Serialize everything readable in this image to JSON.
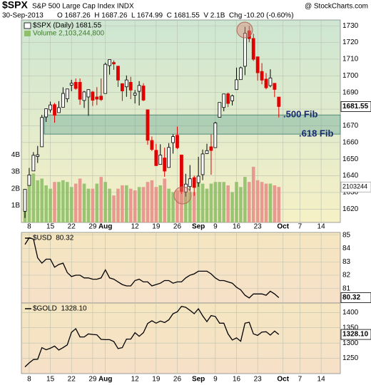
{
  "header": {
    "symbol": "$SPX",
    "name": "S&P 500 Large Cap Index INDX",
    "source": "@ StockCharts.com",
    "date": "30-Sep-2013",
    "quote": "O 1687.26  H 1687.26  L 1674.99  C 1681.55  V 2.1B  Chg -10.20 (-0.60%)"
  },
  "chart_data": [
    {
      "type": "candlestick",
      "legend": "$SPX (Daily) 1681.55",
      "categories": [
        null,
        "8",
        null,
        null,
        null,
        null,
        "15",
        null,
        null,
        null,
        null,
        "22",
        null,
        null,
        null,
        null,
        "29",
        null,
        null,
        "Aug",
        null,
        null,
        null,
        null,
        null,
        null,
        "12",
        null,
        null,
        null,
        null,
        "19",
        null,
        null,
        null,
        null,
        "26",
        null,
        null,
        null,
        null,
        "Sep",
        null,
        null,
        null,
        "9",
        null,
        null,
        null,
        null,
        "16",
        null,
        null,
        null,
        null,
        "23",
        null,
        null,
        null,
        null,
        null,
        "Oct",
        null,
        null,
        null,
        "7",
        null,
        null,
        null,
        null,
        "14",
        null,
        null,
        null,
        null
      ],
      "open": [
        1618.7,
        1634.2,
        1642.9,
        1651.6,
        1657.4,
        1675.3,
        1679.6,
        1682.7,
        1677.9,
        1681.1,
        1686.2,
        1694.4,
        1696.1,
        1696.1,
        1685.2,
        1687.3,
        1690.3,
        1687.3,
        1687.8,
        1689.4,
        1706.1,
        1708.0,
        1705.8,
        1695.3,
        1693.4,
        1696.1,
        1688.4,
        1690.7,
        1693.9,
        1679.6,
        1661.2,
        1655.3,
        1646.8,
        1650.7,
        1645.0,
        1659.9,
        1664.3,
        1652.5,
        1630.3,
        1633.5,
        1638.9,
        1635.9,
        1640.7,
        1653.3,
        1657.4,
        1656.9,
        1675.1,
        1681.0,
        1689.2,
        1685.0,
        1691.7,
        1697.7,
        1705.7,
        1727.0,
        1722.4,
        1711.4,
        1702.6,
        1698.0,
        1694.1,
        1695.5,
        1687.26,
        null,
        null,
        null,
        null,
        null,
        null,
        null,
        null,
        null,
        null,
        null,
        null,
        null,
        null
      ],
      "high": [
        1632.1,
        1644.7,
        1654.2,
        1657.9,
        1676.6,
        1680.2,
        1684.5,
        1683.7,
        1684.8,
        1693.1,
        1692.1,
        1697.6,
        1698.4,
        1698.4,
        1690.9,
        1691.9,
        1690.9,
        1693.2,
        1698.4,
        1707.9,
        1709.7,
        1709.2,
        1705.8,
        1695.3,
        1700.2,
        1699.4,
        1691.5,
        1696.8,
        1695.5,
        1679.6,
        1663.6,
        1659.2,
        1658.9,
        1656.9,
        1659.6,
        1664.9,
        1669.5,
        1652.5,
        1641.2,
        1646.4,
        1640.1,
        1651.4,
        1655.7,
        1659.2,
        1664.8,
        1672.4,
        1684.1,
        1689.1,
        1689.9,
        1688.7,
        1704.9,
        1705.5,
        1729.4,
        1729.9,
        1725.2,
        1711.4,
        1707.6,
        1701.7,
        1703.9,
        1695.5,
        1687.26,
        null,
        null,
        null,
        null,
        null,
        null,
        null,
        null,
        null,
        null,
        null,
        null,
        null,
        null
      ],
      "low": [
        1614.7,
        1634.2,
        1642.9,
        1647.7,
        1657.4,
        1672.3,
        1677.9,
        1671.8,
        1677.9,
        1681.1,
        1684.1,
        1690.7,
        1691.6,
        1682.6,
        1680.7,
        1676.0,
        1681.9,
        1682.4,
        1684.9,
        1689.4,
        1700.7,
        1703.6,
        1693.3,
        1684.9,
        1687.4,
        1686.0,
        1683.4,
        1682.2,
        1684.8,
        1658.6,
        1654.8,
        1645.8,
        1646.8,
        1639.4,
        1645.0,
        1653.3,
        1656.0,
        1629.1,
        1627.5,
        1630.9,
        1628.0,
        1633.4,
        1637.4,
        1653.1,
        1640.6,
        1656.9,
        1675.1,
        1678.7,
        1681.2,
        1682.2,
        1691.7,
        1697.7,
        1700.4,
        1720.2,
        1708.9,
        1697.1,
        1694.9,
        1691.9,
        1693.1,
        1687.2,
        1674.99,
        null,
        null,
        null,
        null,
        null,
        null,
        null,
        null,
        null,
        null,
        null,
        null,
        null,
        null
      ],
      "close": [
        1631.9,
        1640.5,
        1652.3,
        1652.6,
        1675.0,
        1680.2,
        1682.5,
        1676.3,
        1680.9,
        1689.4,
        1692.1,
        1695.5,
        1692.4,
        1685.9,
        1690.3,
        1691.7,
        1685.3,
        1686.0,
        1685.7,
        1706.9,
        1709.7,
        1707.1,
        1697.4,
        1690.9,
        1697.5,
        1691.4,
        1689.5,
        1694.2,
        1685.4,
        1661.3,
        1655.8,
        1646.1,
        1652.4,
        1642.8,
        1657.0,
        1663.5,
        1656.8,
        1630.5,
        1635.0,
        1638.2,
        1633.0,
        1639.8,
        1653.1,
        1655.1,
        1655.2,
        1671.7,
        1684.0,
        1689.1,
        1683.4,
        1688.0,
        1697.6,
        1704.8,
        1725.5,
        1722.3,
        1709.9,
        1701.8,
        1697.4,
        1692.8,
        1698.7,
        1691.8,
        1681.55,
        null,
        null,
        null,
        null,
        null,
        null,
        null,
        null,
        null,
        null,
        null,
        null,
        null,
        null
      ],
      "up_color": "#000000",
      "down_color": "#e00000",
      "ylim": [
        1612,
        1733.5
      ],
      "yticks": [
        1620,
        1630,
        1640,
        1650,
        1660,
        1670,
        1680,
        1690,
        1700,
        1710,
        1720,
        1730
      ],
      "annotations": [
        {
          "text": ".500 Fib",
          "value": 1676.5
        },
        {
          "text": ".618 Fib",
          "value": 1665
        }
      ],
      "volume": {
        "legend": "Volume 2,103,244,800",
        "last_label": "2103244",
        "values": [
          1.4,
          2.6,
          2.9,
          2.5,
          2.6,
          2.2,
          2.0,
          2.4,
          2.4,
          2.5,
          2.4,
          2.1,
          2.3,
          2.6,
          2.3,
          2.0,
          2.0,
          2.3,
          2.7,
          2.4,
          2.0,
          1.6,
          2.0,
          2.2,
          2.2,
          2.0,
          1.9,
          2.1,
          2.1,
          2.4,
          2.5,
          2.1,
          2.2,
          2.6,
          2.0,
          1.8,
          1.9,
          2.3,
          2.1,
          1.8,
          1.8,
          2.4,
          2.3,
          2.0,
          2.3,
          2.4,
          2.4,
          2.4,
          2.2,
          1.8,
          2.4,
          2.1,
          2.7,
          2.4,
          3.3,
          2.5,
          2.4,
          2.3,
          2.3,
          2.2,
          2.1032448,
          null,
          null,
          null,
          null,
          null,
          null,
          null,
          null,
          null,
          null,
          null,
          null,
          null,
          null
        ],
        "ylim": [
          0,
          12
        ],
        "yticks": [
          {
            "value": 1,
            "label": "1B"
          },
          {
            "value": 2,
            "label": "2B"
          },
          {
            "value": 3,
            "label": "3B"
          },
          {
            "value": 4,
            "label": "4B"
          }
        ],
        "up_color": "#8fbf6a",
        "down_color": "#e8908a"
      }
    },
    {
      "type": "line",
      "legend": "$USD  80.32",
      "color": "#000000",
      "values": [
        84.3,
        84.8,
        84.7,
        83.3,
        82.9,
        83.2,
        83.2,
        82.6,
        82.8,
        82.9,
        82.2,
        81.9,
        82.0,
        82.0,
        81.8,
        81.8,
        81.7,
        81.7,
        81.8,
        82.4,
        81.8,
        81.7,
        81.5,
        81.3,
        81.2,
        81.2,
        81.6,
        81.7,
        81.5,
        81.5,
        81.2,
        81.3,
        81.4,
        81.6,
        81.6,
        81.4,
        81.5,
        81.5,
        81.8,
        82.0,
        82.1,
        82.3,
        82.3,
        82.3,
        82.1,
        81.8,
        81.6,
        81.6,
        81.5,
        81.4,
        81.1,
        80.9,
        80.5,
        80.3,
        80.6,
        80.6,
        80.6,
        80.5,
        80.8,
        80.6,
        80.32,
        null,
        null,
        null,
        null,
        null,
        null,
        null,
        null,
        null,
        null,
        null,
        null,
        null,
        null
      ],
      "ylim": [
        79.92,
        85.2
      ],
      "yticks": [
        81,
        82,
        83,
        84,
        85
      ]
    },
    {
      "type": "line",
      "legend": "$GOLD  1328.10",
      "color": "#000000",
      "last_label": "1328.10",
      "values": [
        1222,
        1235,
        1246,
        1247,
        1285,
        1278,
        1283,
        1290,
        1277,
        1285,
        1294,
        1335,
        1347,
        1320,
        1320,
        1330,
        1328,
        1327,
        1312,
        1311,
        1311,
        1305,
        1282,
        1285,
        1313,
        1313,
        1334,
        1322,
        1334,
        1364,
        1373,
        1365,
        1372,
        1367,
        1376,
        1396,
        1402,
        1420,
        1417,
        1407,
        1396,
        1412,
        1389,
        1370,
        1390,
        1387,
        1365,
        1365,
        1330,
        1310,
        1317,
        1306,
        1365,
        1368,
        1330,
        1325,
        1336,
        1337,
        1326,
        1339,
        1328.1,
        null,
        null,
        null,
        null,
        null,
        null,
        null,
        null,
        null,
        null,
        null,
        null,
        null,
        null
      ],
      "ylim": [
        1200,
        1431
      ],
      "yticks": [
        1250,
        1300,
        1350,
        1400
      ]
    }
  ]
}
